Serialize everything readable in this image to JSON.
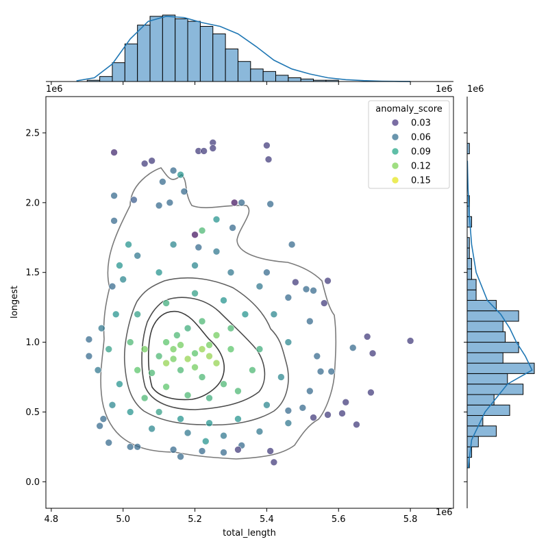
{
  "chart_data": {
    "type": "scatter",
    "title": "",
    "xlabel": "total_length",
    "ylabel": "longest",
    "x_offset_label": "1e6",
    "y_offset_label": "1e6",
    "marg_x_offset_label_left": "1e6",
    "marg_x_offset_label_right": "1e6",
    "xlim": [
      4.785,
      5.92
    ],
    "ylim": [
      -0.19,
      2.76
    ],
    "x_ticks": [
      4.8,
      5.0,
      5.2,
      5.4,
      5.6,
      5.8
    ],
    "x_tick_labels": [
      "4.8",
      "5.0",
      "5.2",
      "5.4",
      "5.6",
      "5.8"
    ],
    "y_ticks": [
      0.0,
      0.5,
      1.0,
      1.5,
      2.0,
      2.5
    ],
    "y_tick_labels": [
      "0.0",
      "0.5",
      "1.0",
      "1.5",
      "2.0",
      "2.5"
    ],
    "grid": false,
    "legend": {
      "title": "anomaly_score",
      "position": "top-right",
      "entries": [
        "0.03",
        "0.06",
        "0.09",
        "0.12",
        "0.15"
      ],
      "colors": [
        "#463480",
        "#2f6c8e",
        "#21a585",
        "#7ad151",
        "#e5e419"
      ]
    },
    "colormap": "viridis",
    "hue_range": [
      0.0,
      0.18
    ],
    "points": [
      [
        4.905,
        1.02,
        0.06
      ],
      [
        4.905,
        0.9,
        0.06
      ],
      [
        4.935,
        0.4,
        0.06
      ],
      [
        4.945,
        0.45,
        0.06
      ],
      [
        4.975,
        2.36,
        0.02
      ],
      [
        4.975,
        2.05,
        0.06
      ],
      [
        4.975,
        1.87,
        0.06
      ],
      [
        4.97,
        1.4,
        0.06
      ],
      [
        5.03,
        2.02,
        0.05
      ],
      [
        5.015,
        1.7,
        0.09
      ],
      [
        5.02,
        0.25,
        0.06
      ],
      [
        5.06,
        2.28,
        0.03
      ],
      [
        5.08,
        2.3,
        0.03
      ],
      [
        5.1,
        1.98,
        0.06
      ],
      [
        5.11,
        2.15,
        0.06
      ],
      [
        5.14,
        2.23,
        0.06
      ],
      [
        5.13,
        2.0,
        0.06
      ],
      [
        5.16,
        2.2,
        0.09
      ],
      [
        5.17,
        2.08,
        0.06
      ],
      [
        5.21,
        2.37,
        0.03
      ],
      [
        5.225,
        2.37,
        0.03
      ],
      [
        5.25,
        2.43,
        0.03
      ],
      [
        5.25,
        2.39,
        0.03
      ],
      [
        5.31,
        2.0,
        0.01
      ],
      [
        5.33,
        2.0,
        0.06
      ],
      [
        5.4,
        2.41,
        0.03
      ],
      [
        5.405,
        2.31,
        0.03
      ],
      [
        5.41,
        1.99,
        0.06
      ],
      [
        5.305,
        1.82,
        0.06
      ],
      [
        5.21,
        1.68,
        0.06
      ],
      [
        5.2,
        1.77,
        0.01
      ],
      [
        5.22,
        1.8,
        0.12
      ],
      [
        5.26,
        1.88,
        0.09
      ],
      [
        5.47,
        1.7,
        0.06
      ],
      [
        5.48,
        1.43,
        0.03
      ],
      [
        5.51,
        1.38,
        0.06
      ],
      [
        5.53,
        1.37,
        0.06
      ],
      [
        5.57,
        1.44,
        0.03
      ],
      [
        5.56,
        1.28,
        0.03
      ],
      [
        5.68,
        1.04,
        0.03
      ],
      [
        5.695,
        0.92,
        0.03
      ],
      [
        5.64,
        0.96,
        0.06
      ],
      [
        5.8,
        1.01,
        0.03
      ],
      [
        5.69,
        0.64,
        0.03
      ],
      [
        5.65,
        0.41,
        0.03
      ],
      [
        5.62,
        0.57,
        0.03
      ],
      [
        5.61,
        0.49,
        0.03
      ],
      [
        5.57,
        0.48,
        0.03
      ],
      [
        5.53,
        0.46,
        0.03
      ],
      [
        5.58,
        0.79,
        0.06
      ],
      [
        5.55,
        0.79,
        0.06
      ],
      [
        5.42,
        0.14,
        0.03
      ],
      [
        5.41,
        0.22,
        0.03
      ],
      [
        5.16,
        0.18,
        0.06
      ],
      [
        5.14,
        0.23,
        0.06
      ],
      [
        4.96,
        0.28,
        0.06
      ],
      [
        5.04,
        0.25,
        0.06
      ],
      [
        5.33,
        0.26,
        0.06
      ],
      [
        5.32,
        0.23,
        0.03
      ],
      [
        5.23,
        0.29,
        0.09
      ],
      [
        5.28,
        0.21,
        0.06
      ],
      [
        5.22,
        0.22,
        0.06
      ],
      [
        5.46,
        0.51,
        0.06
      ],
      [
        5.5,
        0.53,
        0.06
      ],
      [
        5.1,
        0.9,
        0.12
      ],
      [
        5.12,
        0.85,
        0.15
      ],
      [
        5.14,
        0.95,
        0.14
      ],
      [
        5.16,
        0.8,
        0.12
      ],
      [
        5.18,
        0.88,
        0.15
      ],
      [
        5.2,
        0.92,
        0.13
      ],
      [
        5.22,
        0.75,
        0.12
      ],
      [
        5.24,
        0.98,
        0.14
      ],
      [
        5.26,
        0.85,
        0.15
      ],
      [
        5.28,
        0.7,
        0.12
      ],
      [
        5.3,
        0.95,
        0.13
      ],
      [
        5.15,
        1.05,
        0.12
      ],
      [
        5.18,
        1.1,
        0.11
      ],
      [
        5.22,
        1.15,
        0.12
      ],
      [
        5.26,
        1.05,
        0.14
      ],
      [
        5.3,
        1.1,
        0.12
      ],
      [
        5.06,
        0.95,
        0.14
      ],
      [
        5.08,
        0.78,
        0.12
      ],
      [
        5.12,
        0.68,
        0.13
      ],
      [
        5.18,
        0.62,
        0.12
      ],
      [
        5.24,
        0.6,
        0.11
      ],
      [
        5.32,
        0.65,
        0.12
      ],
      [
        5.36,
        0.8,
        0.12
      ],
      [
        5.38,
        0.95,
        0.11
      ],
      [
        5.34,
        1.2,
        0.09
      ],
      [
        5.28,
        1.3,
        0.09
      ],
      [
        5.2,
        1.35,
        0.1
      ],
      [
        5.12,
        1.28,
        0.11
      ],
      [
        5.04,
        1.2,
        0.1
      ],
      [
        5.02,
        1.0,
        0.12
      ],
      [
        5.04,
        0.8,
        0.13
      ],
      [
        5.06,
        0.6,
        0.12
      ],
      [
        5.1,
        0.5,
        0.1
      ],
      [
        5.16,
        0.45,
        0.09
      ],
      [
        5.24,
        0.42,
        0.09
      ],
      [
        5.32,
        0.45,
        0.09
      ],
      [
        5.4,
        0.55,
        0.08
      ],
      [
        5.44,
        0.75,
        0.08
      ],
      [
        5.46,
        1.0,
        0.08
      ],
      [
        5.42,
        1.2,
        0.08
      ],
      [
        5.38,
        1.4,
        0.07
      ],
      [
        5.3,
        1.5,
        0.07
      ],
      [
        5.2,
        1.55,
        0.08
      ],
      [
        5.1,
        1.5,
        0.09
      ],
      [
        5.0,
        1.45,
        0.08
      ],
      [
        4.98,
        1.2,
        0.09
      ],
      [
        4.96,
        0.95,
        0.1
      ],
      [
        4.99,
        0.7,
        0.09
      ],
      [
        5.02,
        0.5,
        0.09
      ],
      [
        5.08,
        0.38,
        0.08
      ],
      [
        5.18,
        0.35,
        0.07
      ],
      [
        5.28,
        0.33,
        0.07
      ],
      [
        5.38,
        0.36,
        0.07
      ],
      [
        5.46,
        0.42,
        0.07
      ],
      [
        5.52,
        0.65,
        0.06
      ],
      [
        5.54,
        0.9,
        0.06
      ],
      [
        5.52,
        1.15,
        0.06
      ],
      [
        5.46,
        1.32,
        0.06
      ],
      [
        5.4,
        1.5,
        0.06
      ],
      [
        5.26,
        1.65,
        0.07
      ],
      [
        5.14,
        1.7,
        0.08
      ],
      [
        5.04,
        1.62,
        0.07
      ],
      [
        4.99,
        1.55,
        0.09
      ],
      [
        4.94,
        1.1,
        0.07
      ],
      [
        4.93,
        0.8,
        0.07
      ],
      [
        4.97,
        0.55,
        0.08
      ],
      [
        5.22,
        0.95,
        0.15
      ],
      [
        5.16,
        0.98,
        0.14
      ],
      [
        5.2,
        0.82,
        0.14
      ],
      [
        5.12,
        1.0,
        0.13
      ],
      [
        5.24,
        0.9,
        0.15
      ],
      [
        5.14,
        0.88,
        0.14
      ]
    ],
    "top_hist": {
      "bin_edges": [
        4.9,
        4.935,
        4.97,
        5.005,
        5.04,
        5.075,
        5.11,
        5.145,
        5.18,
        5.215,
        5.25,
        5.285,
        5.32,
        5.355,
        5.39,
        5.425,
        5.46,
        5.495,
        5.53,
        5.565,
        5.6
      ],
      "counts": [
        1,
        4,
        15,
        30,
        45,
        52,
        53,
        50,
        48,
        44,
        38,
        26,
        16,
        10,
        8,
        5,
        3,
        2,
        1,
        1
      ],
      "kde_x": [
        4.87,
        4.92,
        4.97,
        5.02,
        5.07,
        5.12,
        5.17,
        5.22,
        5.27,
        5.32,
        5.37,
        5.42,
        5.47,
        5.52,
        5.57,
        5.62,
        5.67,
        5.72,
        5.77,
        5.8
      ],
      "kde_y": [
        0.5,
        3,
        14,
        34,
        48,
        52,
        51,
        47,
        44,
        38,
        28,
        17,
        10,
        6,
        3,
        1.5,
        0.7,
        0.3,
        0.1,
        0.05
      ]
    },
    "right_hist": {
      "bin_edges": [
        0.1,
        0.175,
        0.25,
        0.325,
        0.4,
        0.475,
        0.55,
        0.625,
        0.7,
        0.775,
        0.85,
        0.925,
        1.0,
        1.075,
        1.15,
        1.225,
        1.3,
        1.375,
        1.45,
        1.525,
        1.6,
        1.675,
        1.75,
        1.825,
        1.9,
        1.975,
        2.05,
        2.125,
        2.2,
        2.275,
        2.35,
        2.425
      ],
      "counts": [
        1,
        2,
        5,
        13,
        7,
        19,
        12,
        25,
        18,
        30,
        16,
        23,
        17,
        16,
        23,
        13,
        4,
        4,
        2,
        2,
        1,
        1,
        0,
        2,
        1,
        1,
        0,
        0,
        0,
        0,
        1
      ],
      "kde_y": [
        0.1,
        0.3,
        0.5,
        0.7,
        0.8,
        0.9,
        1.0,
        1.1,
        1.2,
        1.3,
        1.5,
        1.7,
        1.9,
        2.1,
        2.3
      ],
      "kde_x": [
        0.5,
        2,
        8,
        18,
        29,
        26,
        22,
        19,
        15,
        9,
        4,
        2,
        1,
        0.4,
        0.1
      ]
    }
  }
}
